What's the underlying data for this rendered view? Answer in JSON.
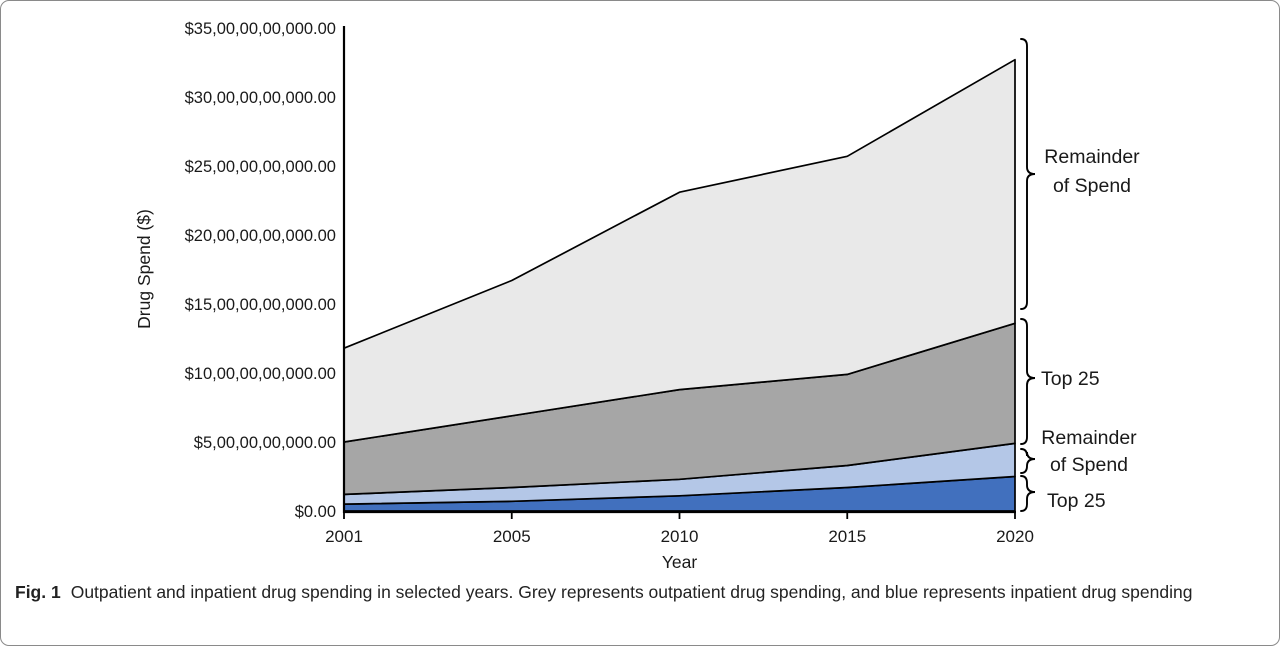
{
  "figure": {
    "caption_label": "Fig. 1",
    "caption_text": "Outpatient and inpatient drug spending in selected years. Grey represents outpatient drug spending, and blue represents inpatient drug spending"
  },
  "chart_data": {
    "type": "area",
    "stacked": true,
    "title": "",
    "xlabel": "Year",
    "ylabel": "Drug Spend ($)",
    "categories": [
      "2001",
      "2005",
      "2010",
      "2015",
      "2020"
    ],
    "y_tick_labels_top_to_bottom": [
      "$35,00,00,00,000.00",
      "$30,00,00,00,000.00",
      "$25,00,00,00,000.00",
      "$20,00,00,00,000.00",
      "$15,00,00,00,000.00",
      "$10,00,00,00,000.00",
      "$5,00,00,00,000.00",
      "$0.00"
    ],
    "ylim_billions": [
      0,
      35
    ],
    "grid": false,
    "legend_position": "right-brackets",
    "series": [
      {
        "name": "Inpatient Top 25",
        "color": "#4170BE",
        "values_billions": [
          0.5,
          0.7,
          1.1,
          1.7,
          2.5
        ]
      },
      {
        "name": "Inpatient Remainder of Spend",
        "color": "#B4C7E7",
        "values_billions": [
          0.7,
          1.0,
          1.2,
          1.6,
          2.4
        ]
      },
      {
        "name": "Outpatient Top 25",
        "color": "#A6A6A6",
        "values_billions": [
          3.8,
          5.2,
          6.5,
          6.6,
          8.7
        ]
      },
      {
        "name": "Outpatient Remainder of Spend",
        "color": "#E9E9E9",
        "values_billions": [
          6.8,
          9.8,
          14.3,
          15.8,
          19.1
        ]
      }
    ],
    "cumulative_tops_billions": [
      [
        0.5,
        0.7,
        1.1,
        1.7,
        2.5
      ],
      [
        1.2,
        1.7,
        2.3,
        3.3,
        4.9
      ],
      [
        5.0,
        6.9,
        8.8,
        9.9,
        13.6
      ],
      [
        11.8,
        16.7,
        23.1,
        25.7,
        32.7
      ]
    ],
    "annotations": [
      {
        "lines": [
          "Remainder",
          "of Spend"
        ],
        "band": "outpatient-remainder"
      },
      {
        "lines": [
          "Top 25"
        ],
        "band": "outpatient-top25"
      },
      {
        "lines": [
          "Remainder",
          "of Spend"
        ],
        "band": "inpatient-remainder"
      },
      {
        "lines": [
          "Top 25"
        ],
        "band": "inpatient-top25"
      }
    ],
    "colors": {
      "outline": "#000000",
      "axis": "#000000",
      "text": "#1a1a1a"
    }
  }
}
